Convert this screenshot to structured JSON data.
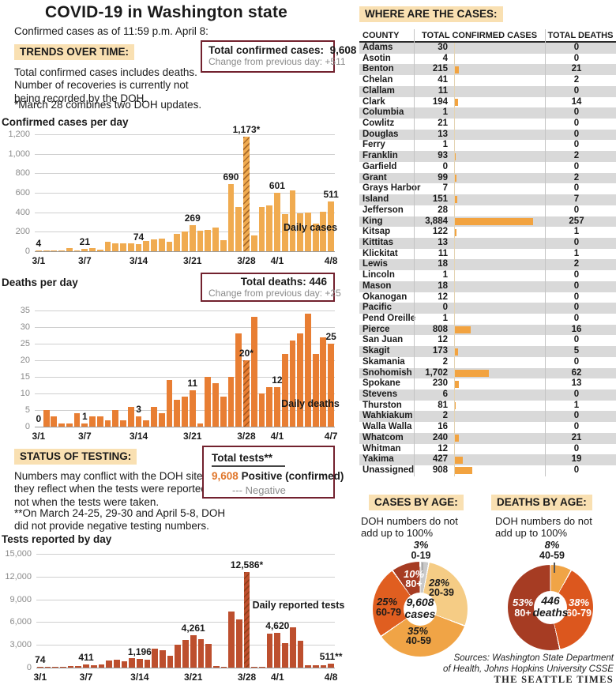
{
  "title": "COVID-19 in Washington state",
  "subtitle": "Confirmed cases as of 11:59 p.m. April 8:",
  "colors": {
    "section_highlight": "#f9e0b2",
    "box_border": "#72212e",
    "cases_bar": "#f0ab50",
    "deaths_bar": "#e87e33",
    "tests_bar": "#bd4f2e",
    "table_bar": "#f2a340",
    "row_stripe": "#d9d9d9",
    "positive_orange": "#e0762a"
  },
  "trends": {
    "heading": "TRENDS OVER TIME:",
    "body": "Total confirmed cases includes deaths.\nNumber of recoveries is currently not\nbeing recorded by the DOH.",
    "note": "*March 28 combines two DOH updates."
  },
  "total_cases_box": {
    "label": "Total confirmed cases:",
    "value": "9,608",
    "change": "Change from previous day: +511"
  },
  "total_deaths_box": {
    "label": "Total deaths:",
    "value": "446",
    "change": "Change from previous day: +25"
  },
  "testing": {
    "heading": "STATUS OF TESTING:",
    "body": "Numbers may conflict with the DOH site as\nthey reflect when the tests were reported\nnot when the tests were taken.",
    "note": "**On March 24-25, 29-30 and April 5-8, DOH\ndid not provide negative testing numbers.",
    "box": {
      "title": "Total tests**",
      "positive_value": "9,608",
      "positive_label": "Positive (confirmed)",
      "negative_label": "--- Negative"
    }
  },
  "chart_data": [
    {
      "type": "bar",
      "title": "Confirmed cases per day",
      "inner_label": "Daily cases",
      "bar_color": "#f0ab50",
      "x_start": "3/1",
      "x_end": "4/8",
      "ylim": [
        0,
        1200
      ],
      "values": [
        4,
        3,
        6,
        10,
        31,
        12,
        21,
        32,
        18,
        95,
        85,
        80,
        85,
        74,
        105,
        120,
        130,
        95,
        175,
        200,
        269,
        208,
        222,
        246,
        111,
        690,
        451,
        1173,
        165,
        451,
        470,
        601,
        381,
        627,
        389,
        400,
        287,
        408,
        511
      ],
      "y_ticks": [
        {
          "v": 0,
          "label": "0"
        },
        {
          "v": 200,
          "label": "200"
        },
        {
          "v": 400,
          "label": "400"
        },
        {
          "v": 600,
          "label": "600"
        },
        {
          "v": 800,
          "label": "800"
        },
        {
          "v": 1000,
          "label": "1,000"
        },
        {
          "v": 1200,
          "label": "1,200"
        }
      ],
      "x_ticks": [
        {
          "index": 0,
          "label": "3/1"
        },
        {
          "index": 6,
          "label": "3/7"
        },
        {
          "index": 13,
          "label": "3/14"
        },
        {
          "index": 20,
          "label": "3/21"
        },
        {
          "index": 27,
          "label": "3/28"
        },
        {
          "index": 31,
          "label": "4/1"
        },
        {
          "index": 38,
          "label": "4/8"
        }
      ],
      "bar_labels": [
        {
          "index": 0,
          "label": "4"
        },
        {
          "index": 6,
          "label": "21"
        },
        {
          "index": 13,
          "label": "74"
        },
        {
          "index": 20,
          "label": "269"
        },
        {
          "index": 25,
          "label": "690"
        },
        {
          "index": 27,
          "label": "1,173*"
        },
        {
          "index": 31,
          "label": "601"
        },
        {
          "index": 38,
          "label": "511"
        }
      ],
      "hatched_index": 27
    },
    {
      "type": "bar",
      "title": "Deaths per day",
      "inner_label": "Daily deaths",
      "bar_color": "#e87e33",
      "x_start": "3/1",
      "x_end": "4/7",
      "ylim": [
        0,
        35
      ],
      "values": [
        0,
        5,
        3,
        1,
        1,
        4,
        1,
        3,
        3,
        2,
        5,
        2,
        6,
        3,
        2,
        6,
        4,
        14,
        8,
        9,
        11,
        1,
        15,
        13,
        9,
        15,
        28,
        20,
        33,
        10,
        12,
        12,
        22,
        26,
        28,
        34,
        22,
        27,
        25
      ],
      "y_ticks": [
        {
          "v": 0,
          "label": "0"
        },
        {
          "v": 5,
          "label": "5"
        },
        {
          "v": 10,
          "label": "10"
        },
        {
          "v": 15,
          "label": "15"
        },
        {
          "v": 20,
          "label": "20"
        },
        {
          "v": 25,
          "label": "25"
        },
        {
          "v": 30,
          "label": "30"
        },
        {
          "v": 35,
          "label": "35"
        }
      ],
      "x_ticks": [
        {
          "index": 0,
          "label": "3/1"
        },
        {
          "index": 6,
          "label": "3/7"
        },
        {
          "index": 13,
          "label": "3/14"
        },
        {
          "index": 20,
          "label": "3/21"
        },
        {
          "index": 27,
          "label": "3/28"
        },
        {
          "index": 31,
          "label": "4/1"
        },
        {
          "index": 38,
          "label": "4/7"
        }
      ],
      "bar_labels": [
        {
          "index": 0,
          "label": "0"
        },
        {
          "index": 6,
          "label": "1"
        },
        {
          "index": 13,
          "label": "3"
        },
        {
          "index": 20,
          "label": "11"
        },
        {
          "index": 27,
          "label": "20*"
        },
        {
          "index": 31,
          "label": "12"
        },
        {
          "index": 38,
          "label": "25"
        }
      ],
      "hatched_index": 27
    },
    {
      "type": "bar",
      "title": "Tests reported by day",
      "inner_label": "Daily reported tests",
      "bar_color": "#bd4f2e",
      "x_start": "3/1",
      "x_end": "4/8",
      "ylim": [
        0,
        15000
      ],
      "values": [
        74,
        90,
        110,
        90,
        160,
        250,
        411,
        300,
        420,
        936,
        1000,
        800,
        1300,
        1196,
        1050,
        2450,
        2250,
        1600,
        3050,
        3650,
        4261,
        3800,
        3100,
        200,
        100,
        7400,
        6400,
        12586,
        80,
        30,
        4440,
        4620,
        3190,
        5310,
        3540,
        330,
        300,
        330,
        511
      ],
      "y_ticks": [
        {
          "v": 0,
          "label": "0"
        },
        {
          "v": 3000,
          "label": "3,000"
        },
        {
          "v": 6000,
          "label": "6,000"
        },
        {
          "v": 9000,
          "label": "9,000"
        },
        {
          "v": 12000,
          "label": "12,000"
        },
        {
          "v": 15000,
          "label": "15,000"
        }
      ],
      "x_ticks": [
        {
          "index": 0,
          "label": "3/1"
        },
        {
          "index": 6,
          "label": "3/7"
        },
        {
          "index": 13,
          "label": "3/14"
        },
        {
          "index": 20,
          "label": "3/21"
        },
        {
          "index": 27,
          "label": "3/28"
        },
        {
          "index": 31,
          "label": "4/1"
        },
        {
          "index": 38,
          "label": "4/8"
        }
      ],
      "bar_labels": [
        {
          "index": 0,
          "label": "74"
        },
        {
          "index": 6,
          "label": "411"
        },
        {
          "index": 13,
          "label": "1,196"
        },
        {
          "index": 20,
          "label": "4,261"
        },
        {
          "index": 27,
          "label": "12,586*"
        },
        {
          "index": 31,
          "label": "4,620"
        },
        {
          "index": 38,
          "label": "511**"
        }
      ],
      "hatched_index": 27
    },
    {
      "type": "pie",
      "heading": "CASES BY AGE:",
      "note": "DOH numbers do not\nadd up to 100%",
      "center": {
        "value": "9,608",
        "label": "cases"
      },
      "slices": [
        {
          "label": "0-19",
          "pct": 3,
          "pct_label": "3%",
          "color": "#c9c9c9"
        },
        {
          "label": "20-39",
          "pct": 28,
          "pct_label": "28%",
          "color": "#f5cc85"
        },
        {
          "label": "40-59",
          "pct": 35,
          "pct_label": "35%",
          "color": "#f0a446"
        },
        {
          "label": "60-79",
          "pct": 25,
          "pct_label": "25%",
          "color": "#e05e20"
        },
        {
          "label": "80+",
          "pct": 10,
          "pct_label": "10%",
          "color": "#a63c23"
        }
      ]
    },
    {
      "type": "pie",
      "heading": "DEATHS BY AGE:",
      "note": "DOH numbers do not\nadd up to 100%",
      "center": {
        "value": "446",
        "label": "deaths"
      },
      "slices": [
        {
          "label": "40-59",
          "pct": 8,
          "pct_label": "8%",
          "color": "#f0a446"
        },
        {
          "label": "60-79",
          "pct": 38,
          "pct_label": "38%",
          "color": "#dc571e"
        },
        {
          "label": "80+",
          "pct": 53,
          "pct_label": "53%",
          "color": "#a63c23"
        }
      ]
    }
  ],
  "cases_table": {
    "heading": "WHERE ARE THE CASES:",
    "columns": [
      "COUNTY",
      "TOTAL CONFIRMED CASES",
      "TOTAL DEATHS"
    ],
    "max_cases": 3884,
    "rows": [
      {
        "county": "Adams",
        "cases": "30",
        "deaths": "0"
      },
      {
        "county": "Asotin",
        "cases": "4",
        "deaths": "0"
      },
      {
        "county": "Benton",
        "cases": "215",
        "deaths": "21"
      },
      {
        "county": "Chelan",
        "cases": "41",
        "deaths": "2"
      },
      {
        "county": "Clallam",
        "cases": "11",
        "deaths": "0"
      },
      {
        "county": "Clark",
        "cases": "194",
        "deaths": "14"
      },
      {
        "county": "Columbia",
        "cases": "1",
        "deaths": "0"
      },
      {
        "county": "Cowlitz",
        "cases": "21",
        "deaths": "0"
      },
      {
        "county": "Douglas",
        "cases": "13",
        "deaths": "0"
      },
      {
        "county": "Ferry",
        "cases": "1",
        "deaths": "0"
      },
      {
        "county": "Franklin",
        "cases": "93",
        "deaths": "2"
      },
      {
        "county": "Garfield",
        "cases": "0",
        "deaths": "0"
      },
      {
        "county": "Grant",
        "cases": "99",
        "deaths": "2"
      },
      {
        "county": "Grays Harbor",
        "cases": "7",
        "deaths": "0"
      },
      {
        "county": "Island",
        "cases": "151",
        "deaths": "7"
      },
      {
        "county": "Jefferson",
        "cases": "28",
        "deaths": "0"
      },
      {
        "county": "King",
        "cases": "3,884",
        "deaths": "257"
      },
      {
        "county": "Kitsap",
        "cases": "122",
        "deaths": "1"
      },
      {
        "county": "Kittitas",
        "cases": "13",
        "deaths": "0"
      },
      {
        "county": "Klickitat",
        "cases": "11",
        "deaths": "1"
      },
      {
        "county": "Lewis",
        "cases": "18",
        "deaths": "2"
      },
      {
        "county": "Lincoln",
        "cases": "1",
        "deaths": "0"
      },
      {
        "county": "Mason",
        "cases": "18",
        "deaths": "0"
      },
      {
        "county": "Okanogan",
        "cases": "12",
        "deaths": "0"
      },
      {
        "county": "Pacific",
        "cases": "0",
        "deaths": "0"
      },
      {
        "county": "Pend Oreille",
        "cases": "1",
        "deaths": "0"
      },
      {
        "county": "Pierce",
        "cases": "808",
        "deaths": "16"
      },
      {
        "county": "San Juan",
        "cases": "12",
        "deaths": "0"
      },
      {
        "county": "Skagit",
        "cases": "173",
        "deaths": "5"
      },
      {
        "county": "Skamania",
        "cases": "2",
        "deaths": "0"
      },
      {
        "county": "Snohomish",
        "cases": "1,702",
        "deaths": "62"
      },
      {
        "county": "Spokane",
        "cases": "230",
        "deaths": "13"
      },
      {
        "county": "Stevens",
        "cases": "6",
        "deaths": "0"
      },
      {
        "county": "Thurston",
        "cases": "81",
        "deaths": "1"
      },
      {
        "county": "Wahkiakum",
        "cases": "2",
        "deaths": "0"
      },
      {
        "county": "Walla Walla",
        "cases": "16",
        "deaths": "0"
      },
      {
        "county": "Whatcom",
        "cases": "240",
        "deaths": "21"
      },
      {
        "county": "Whitman",
        "cases": "12",
        "deaths": "0"
      },
      {
        "county": "Yakima",
        "cases": "427",
        "deaths": "19"
      },
      {
        "county": "Unassigned",
        "cases": "908",
        "deaths": "0"
      }
    ]
  },
  "sources": {
    "text": "Sources: Washington State Department\nof Health, Johns Hopkins University CSSE",
    "brand": "THE SEATTLE TIMES"
  }
}
